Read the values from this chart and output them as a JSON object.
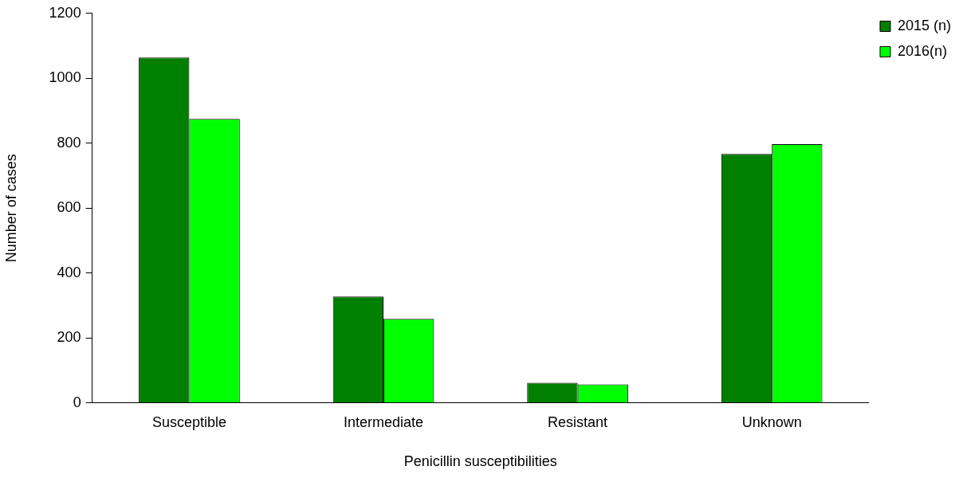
{
  "chart_data": {
    "type": "bar",
    "xlabel": "Penicillin susceptibilities",
    "ylabel": "Number of cases",
    "categories": [
      "Susceptible",
      "Intermediate",
      "Resistant",
      "Unknown"
    ],
    "series": [
      {
        "name": "2015 (n)",
        "color": "#007f00",
        "values": [
          1064,
          328,
          62,
          767
        ]
      },
      {
        "name": "2016(n)",
        "color": "#00ff00",
        "values": [
          875,
          259,
          57,
          797
        ]
      }
    ],
    "ylim": [
      0,
      1200
    ],
    "yticks": [
      0,
      200,
      400,
      600,
      800,
      1000,
      1200
    ],
    "grid": false,
    "legend": "top right"
  }
}
